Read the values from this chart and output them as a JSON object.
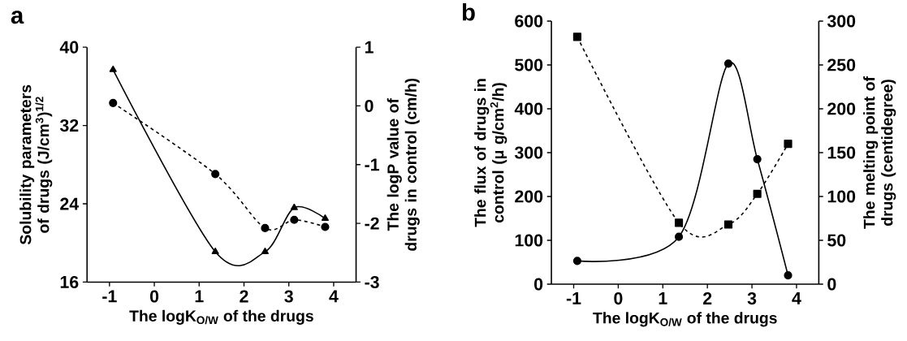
{
  "chart_data": [
    {
      "type": "line",
      "title": "a",
      "xlabel": "The logK$_{O/W}$ of the drugs",
      "ylabel": "Solubility parameters of drugs (J/cm$^{3}$)$^{1/2}$",
      "y2label": "The logP value of drugs in control (cm/h)",
      "x": [
        -0.92,
        1.36,
        2.47,
        3.12,
        3.81
      ],
      "xlim": [
        -1.5,
        4.5
      ],
      "xticks": [
        -1,
        0,
        1,
        2,
        3,
        4
      ],
      "ylim": [
        16,
        40
      ],
      "yticks": [
        16,
        24,
        32,
        40
      ],
      "y2lim": [
        -3,
        1
      ],
      "y2ticks": [
        -3,
        -2,
        -1,
        0,
        1
      ],
      "series": [
        {
          "color": "#000000",
          "values": [
            37.7,
            19.1,
            19.1,
            23.6,
            22.5
          ],
          "marker": "triangle",
          "line_style": "solid"
        },
        {
          "color": "#000000",
          "values": [
            0.05,
            -1.16,
            -2.08,
            -1.94,
            -2.06
          ],
          "axis": "y2",
          "marker": "circle",
          "line_style": "dashed"
        }
      ]
    },
    {
      "type": "line",
      "title": "b",
      "xlabel": "The logK$_{O/W}$ of the drugs",
      "ylabel": "The flux of drugs in control (μ g/cm$^{2}$/h)",
      "y2label": "The melting point of drugs (centidegree)",
      "x": [
        -0.92,
        1.36,
        2.47,
        3.12,
        3.81
      ],
      "xlim": [
        -1.5,
        4.5
      ],
      "xticks": [
        -1,
        0,
        1,
        2,
        3,
        4
      ],
      "ylim": [
        0,
        600
      ],
      "yticks": [
        0,
        100,
        200,
        300,
        400,
        500,
        600
      ],
      "y2lim": [
        0,
        300
      ],
      "y2ticks": [
        0,
        50,
        100,
        150,
        200,
        250,
        300
      ],
      "series": [
        {
          "color": "#000000",
          "values": [
            53,
            108,
            503,
            285,
            20
          ],
          "marker": "circle",
          "line_style": "solid"
        },
        {
          "color": "#000000",
          "values": [
            282,
            70,
            68,
            103,
            160
          ],
          "axis": "y2",
          "marker": "square",
          "line_style": "dashed"
        }
      ]
    }
  ]
}
